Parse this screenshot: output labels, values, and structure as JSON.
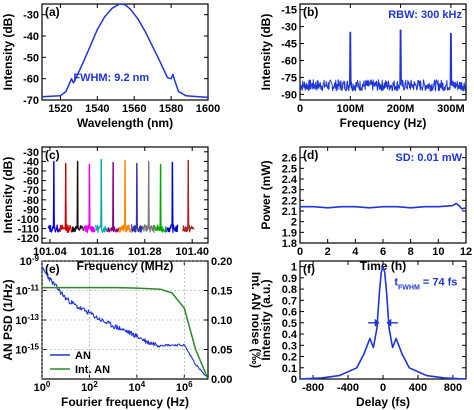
{
  "colors": {
    "series": "#1f35d6",
    "green": "#2a8a2a",
    "grid": "#9a9a9a"
  },
  "chart_data": [
    {
      "panel": "(a)",
      "type": "line",
      "xlabel": "Wavelength (nm)",
      "ylabel": "Intensity (dB)",
      "xlim": [
        1510,
        1600
      ],
      "ylim": [
        -70,
        -25
      ],
      "xticks": [
        1520,
        1540,
        1560,
        1580,
        1600
      ],
      "yticks": [
        -70,
        -60,
        -50,
        -40,
        -30
      ],
      "annotation": "FWHM: 9.2 nm",
      "series": [
        {
          "x": [
            1510,
            1520,
            1523,
            1525,
            1526,
            1527,
            1528,
            1532,
            1536,
            1540,
            1544,
            1548,
            1552,
            1555,
            1558,
            1562,
            1566,
            1570,
            1574,
            1578,
            1580,
            1581,
            1582,
            1584,
            1588,
            1595,
            1600
          ],
          "y": [
            -68.5,
            -68,
            -66,
            -62,
            -60,
            -62,
            -60.5,
            -53,
            -45,
            -37,
            -31,
            -27,
            -25,
            -25.3,
            -27.5,
            -32,
            -38,
            -45,
            -52,
            -59.5,
            -60,
            -58,
            -61,
            -66,
            -68,
            -68.5,
            -68.8
          ]
        }
      ]
    },
    {
      "panel": "(b)",
      "type": "line",
      "xlabel": "Frequency (Hz)",
      "ylabel": "Intensity (dB)",
      "xlim": [
        0,
        330
      ],
      "ylim": [
        -95,
        -10
      ],
      "xticks": [
        0,
        100,
        200,
        300
      ],
      "xticklabels": [
        "0",
        "100M",
        "200M",
        "300M"
      ],
      "yticks": [
        -90,
        -75,
        -60,
        -45,
        -30,
        -15
      ],
      "annotation": "RBW: 300 kHz",
      "peaks": [
        {
          "x": 100,
          "y": -35
        },
        {
          "x": 200,
          "y": -33
        },
        {
          "x": 300,
          "y": -36
        }
      ],
      "noise_floor": -82
    },
    {
      "panel": "(c)",
      "type": "line",
      "xlabel": "Frequency (MHz)",
      "ylabel": "Intensity (dB)",
      "xlim": [
        101.02,
        101.44
      ],
      "ylim": [
        -125,
        -25
      ],
      "xticks": [
        101.04,
        101.16,
        101.28,
        101.4
      ],
      "xticklabels": [
        "101.04",
        "101.16",
        "101.28",
        "101.40"
      ],
      "yticks": [
        -120,
        -110,
        -100,
        -90,
        -80,
        -70,
        -60,
        -50,
        -40,
        -30
      ],
      "peaks": [
        {
          "x": 101.05,
          "y": -40,
          "color": "#0000ee"
        },
        {
          "x": 101.08,
          "y": -42,
          "color": "#cc0000"
        },
        {
          "x": 101.11,
          "y": -40,
          "color": "#111111"
        },
        {
          "x": 101.14,
          "y": -43,
          "color": "#ee00ee"
        },
        {
          "x": 101.17,
          "y": -38,
          "color": "#00aaaa"
        },
        {
          "x": 101.2,
          "y": -41,
          "color": "#880088"
        },
        {
          "x": 101.23,
          "y": -39,
          "color": "#ff8800"
        },
        {
          "x": 101.26,
          "y": -42,
          "color": "#3333aa"
        },
        {
          "x": 101.29,
          "y": -40,
          "color": "#777777"
        },
        {
          "x": 101.32,
          "y": -43,
          "color": "#00aa00"
        },
        {
          "x": 101.35,
          "y": -41,
          "color": "#0000cc"
        },
        {
          "x": 101.39,
          "y": -39,
          "color": "#aa2222"
        }
      ],
      "noise_floor": -110
    },
    {
      "panel": "(d)",
      "type": "line",
      "xlabel": "Time (h)",
      "ylabel": "Power (mW)",
      "xlim": [
        0,
        12
      ],
      "ylim": [
        1.8,
        2.7
      ],
      "xticks": [
        0,
        2,
        4,
        6,
        8,
        10,
        12
      ],
      "yticks": [
        1.8,
        1.9,
        2.0,
        2.1,
        2.2,
        2.3,
        2.4,
        2.5,
        2.6
      ],
      "annotation": "SD: 0.01 mW",
      "series": [
        {
          "x": [
            0,
            1,
            2,
            3,
            4,
            5,
            6,
            7,
            8,
            9,
            10,
            11,
            11.3,
            11.5,
            11.7,
            12
          ],
          "y": [
            2.14,
            2.14,
            2.13,
            2.14,
            2.14,
            2.13,
            2.14,
            2.14,
            2.13,
            2.14,
            2.14,
            2.15,
            2.17,
            2.15,
            2.12,
            2.13
          ]
        }
      ]
    },
    {
      "panel": "(e)",
      "type": "line",
      "xlabel": "Fourier frequency (Hz)",
      "ylabel": "AN PSD (1/Hz)",
      "ylabel_right": "Int. AN noise (‰)",
      "xscale": "log",
      "yscale": "log",
      "xlim": [
        1,
        10000000
      ],
      "ylim": [
        1e-17,
        1e-09
      ],
      "ylim_right": [
        0,
        0.2
      ],
      "xticks": [
        1,
        100,
        10000,
        1000000
      ],
      "xticklabels": [
        "10^0",
        "10^2",
        "10^4",
        "10^6"
      ],
      "yticks": [
        1e-09,
        1e-11,
        1e-13,
        1e-15
      ],
      "yticklabels": [
        "10^-9",
        "10^-11",
        "10^-13",
        "10^-15"
      ],
      "yticks_right": [
        0.0,
        0.05,
        0.1,
        0.15,
        0.2
      ],
      "yticklabels_right": [
        "0.00",
        "0.05",
        "0.10",
        "0.15",
        "0.20"
      ],
      "legend": [
        "AN",
        "Int. AN"
      ],
      "legend_position": "bottom-left",
      "series": [
        {
          "name": "AN",
          "x": [
            1,
            3,
            10,
            30,
            100,
            300,
            1000,
            3000,
            10000,
            30000,
            100000,
            300000,
            1000000,
            3000000,
            10000000
          ],
          "y": [
            3e-10,
            3e-11,
            3e-12,
            8e-13,
            3e-13,
            1e-13,
            4e-14,
            2e-14,
            8e-15,
            3e-15,
            2e-15,
            2e-15,
            2e-15,
            1e-16,
            1e-17
          ]
        },
        {
          "name": "Int. AN",
          "x": [
            1,
            10,
            100,
            1000,
            10000,
            100000,
            300000,
            1000000,
            3000000,
            10000000
          ],
          "y": [
            0.155,
            0.155,
            0.155,
            0.155,
            0.154,
            0.152,
            0.146,
            0.12,
            0.05,
            0.0
          ]
        }
      ]
    },
    {
      "panel": "(f)",
      "type": "line",
      "xlabel": "Delay (fs)",
      "ylabel": "Intensity (a.u.)",
      "xlim": [
        -950,
        950
      ],
      "ylim": [
        0,
        1.05
      ],
      "xticks": [
        -800,
        -400,
        0,
        400,
        800
      ],
      "yticks": [
        0.0,
        0.1,
        0.2,
        0.3,
        0.4,
        0.5,
        0.6,
        0.7,
        0.8,
        0.9,
        1.0
      ],
      "annotation": "t",
      "annotation_sub": "FWHM",
      "annotation_rest": " = 74 fs",
      "series": [
        {
          "x": [
            -950,
            -700,
            -500,
            -300,
            -220,
            -150,
            -110,
            -70,
            -40,
            -20,
            0,
            20,
            40,
            70,
            110,
            150,
            220,
            300,
            500,
            700,
            950
          ],
          "y": [
            0.0,
            0.01,
            0.03,
            0.1,
            0.22,
            0.36,
            0.28,
            0.45,
            0.78,
            0.95,
            1.0,
            0.95,
            0.78,
            0.45,
            0.28,
            0.36,
            0.22,
            0.1,
            0.03,
            0.01,
            0.0
          ]
        }
      ]
    }
  ]
}
